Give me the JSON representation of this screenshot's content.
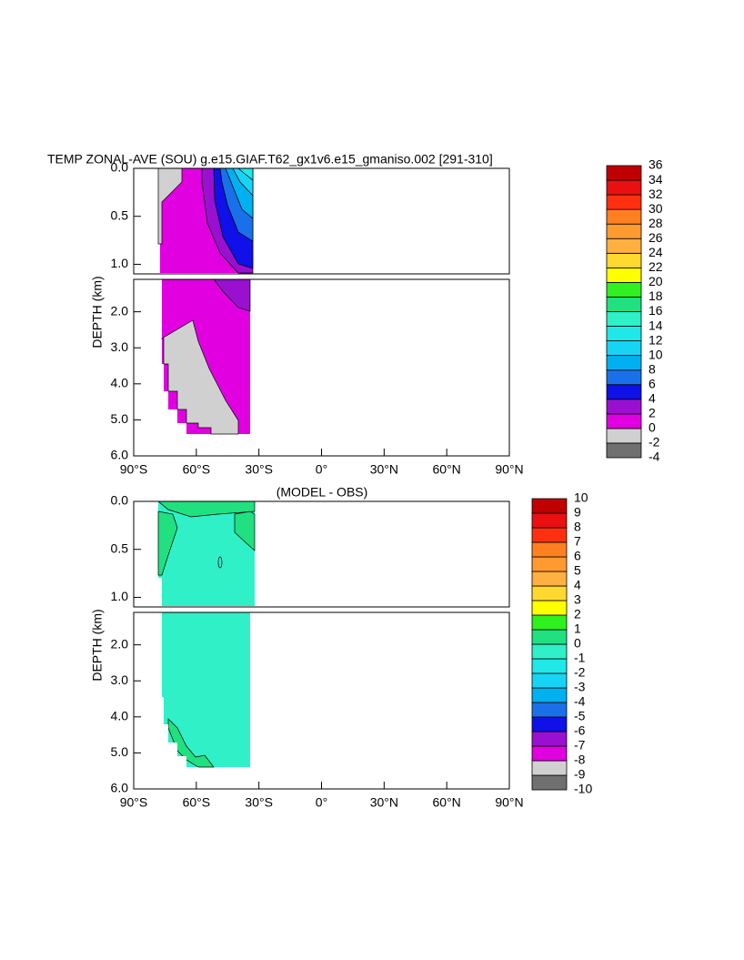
{
  "chart_data": [
    {
      "type": "contour",
      "title": "TEMP ZONAL-AVE (SOU) g.e15.GIAF.T62_gx1v6.e15_gmaniso.002 [291-310]",
      "ylabel": "DEPTH (km)",
      "xlim": [
        -90,
        90
      ],
      "xticks": [
        {
          "value": -90,
          "label": "90°S"
        },
        {
          "value": -60,
          "label": "60°S"
        },
        {
          "value": -30,
          "label": "30°S"
        },
        {
          "value": 0,
          "label": "0°"
        },
        {
          "value": 30,
          "label": "30°N"
        },
        {
          "value": 60,
          "label": "60°N"
        },
        {
          "value": 90,
          "label": "90°N"
        }
      ],
      "ylim": [
        [
          0,
          1.1
        ],
        [
          1.1,
          6.0
        ]
      ],
      "yticks": [
        {
          "value": 0,
          "label": "0.0"
        },
        {
          "value": 0.5,
          "label": "0.5"
        },
        {
          "value": 1,
          "label": "1.0"
        },
        {
          "value": 2,
          "label": "2.0"
        },
        {
          "value": 3,
          "label": "3.0"
        },
        {
          "value": 4,
          "label": "4.0"
        },
        {
          "value": 5,
          "label": "5.0"
        },
        {
          "value": 6,
          "label": "6.0"
        }
      ],
      "colorbar": {
        "levels": [
          -4,
          -2,
          0,
          2,
          4,
          6,
          8,
          10,
          12,
          14,
          16,
          18,
          20,
          22,
          24,
          26,
          28,
          30,
          32,
          34,
          36
        ],
        "colors": [
          "#707070",
          "#d0d0d0",
          "#e000e0",
          "#9a10d0",
          "#1010e8",
          "#1a70e8",
          "#00b0f0",
          "#18d4f4",
          "#20e8e8",
          "#30f0c8",
          "#20e080",
          "#30f020",
          "#ffff00",
          "#ffd830",
          "#ffb040",
          "#ff9a30",
          "#ff8020",
          "#ff3010",
          "#e81010",
          "#c00000"
        ]
      }
    },
    {
      "type": "contour",
      "title": "(MODEL - OBS)",
      "ylabel": "DEPTH (km)",
      "xlim": [
        -90,
        90
      ],
      "xticks": [
        {
          "value": -90,
          "label": "90°S"
        },
        {
          "value": -60,
          "label": "60°S"
        },
        {
          "value": -30,
          "label": "30°S"
        },
        {
          "value": 0,
          "label": "0°"
        },
        {
          "value": 30,
          "label": "30°N"
        },
        {
          "value": 60,
          "label": "60°N"
        },
        {
          "value": 90,
          "label": "90°N"
        }
      ],
      "ylim": [
        [
          0,
          1.1
        ],
        [
          1.1,
          6.0
        ]
      ],
      "yticks": [
        {
          "value": 0,
          "label": "0.0"
        },
        {
          "value": 0.5,
          "label": "0.5"
        },
        {
          "value": 1,
          "label": "1.0"
        },
        {
          "value": 2,
          "label": "2.0"
        },
        {
          "value": 3,
          "label": "3.0"
        },
        {
          "value": 4,
          "label": "4.0"
        },
        {
          "value": 5,
          "label": "5.0"
        },
        {
          "value": 6,
          "label": "6.0"
        }
      ],
      "colorbar": {
        "levels": [
          -10,
          -9,
          -8,
          -7,
          -6,
          -5,
          -4,
          -3,
          -2,
          -1,
          0,
          1,
          2,
          3,
          4,
          5,
          6,
          7,
          8,
          9,
          10
        ],
        "colors": [
          "#707070",
          "#d0d0d0",
          "#e000e0",
          "#9a10d0",
          "#1010e8",
          "#1a70e8",
          "#00b0f0",
          "#18d4f4",
          "#20e8e8",
          "#30f0c8",
          "#20e080",
          "#30f020",
          "#ffff00",
          "#ffd830",
          "#ffb040",
          "#ff9a30",
          "#ff8020",
          "#ff3010",
          "#e81010",
          "#c00000"
        ]
      }
    }
  ]
}
